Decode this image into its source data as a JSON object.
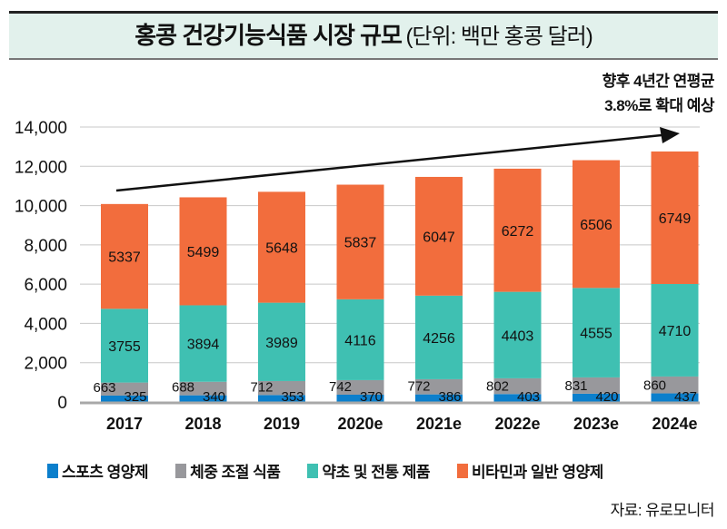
{
  "chart_data": {
    "type": "bar",
    "stacked": true,
    "title": "홍콩 건강기능식품 시장 규모",
    "unit_note": "(단위: 백만 홍콩 달러)",
    "annotation": [
      "향후 4년간 연평균",
      "3.8%로 확대 예상"
    ],
    "categories": [
      "2017",
      "2018",
      "2019",
      "2020e",
      "2021e",
      "2022e",
      "2023e",
      "2024e"
    ],
    "series": [
      {
        "name": "스포츠 영양제",
        "color": "#0b7fcc",
        "values": [
          325,
          340,
          353,
          370,
          386,
          403,
          420,
          437
        ]
      },
      {
        "name": "체중 조절 식품",
        "color": "#98989c",
        "values": [
          663,
          688,
          712,
          742,
          772,
          802,
          831,
          860
        ]
      },
      {
        "name": "약초 및 전통 제품",
        "color": "#3fc0b2",
        "values": [
          3755,
          3894,
          3989,
          4116,
          4256,
          4403,
          4555,
          4710
        ]
      },
      {
        "name": "비타민과 일반 영양제",
        "color": "#f26d3d",
        "values": [
          5337,
          5499,
          5648,
          5837,
          6047,
          6272,
          6506,
          6749
        ]
      }
    ],
    "yticks": [
      "0",
      "2,000",
      "4,000",
      "6,000",
      "8,000",
      "10,000",
      "12,000",
      "14,000"
    ],
    "ylim": [
      0,
      14000
    ],
    "grid": true,
    "legend": "bottom",
    "trend_arrow": true
  },
  "source": "자료: 유로모니터"
}
